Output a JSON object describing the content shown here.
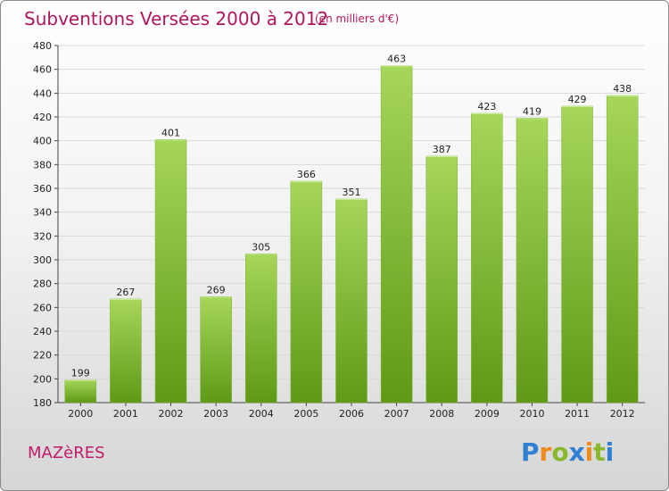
{
  "title": "Subventions Versées 2000 à 2012",
  "subtitle": "(en milliers d'€)",
  "commune": "MAZèRES",
  "logo": {
    "text": "Proxiti",
    "letters": [
      {
        "ch": "P",
        "color": "#2f7fd3"
      },
      {
        "ch": "r",
        "color": "#f08a1c"
      },
      {
        "ch": "o",
        "color": "#8ab82c"
      },
      {
        "ch": "x",
        "color": "#2f7fd3"
      },
      {
        "ch": "i",
        "color": "#f08a1c"
      },
      {
        "ch": "t",
        "color": "#8ab82c"
      },
      {
        "ch": "i",
        "color": "#2f7fd3"
      }
    ]
  },
  "colors": {
    "title": "#b0155f",
    "bar_light": "#a6d65a",
    "bar_dark": "#5e9a16",
    "grid": "#d9d9d9"
  },
  "chart_data": {
    "type": "bar",
    "categories": [
      "2000",
      "2001",
      "2002",
      "2003",
      "2004",
      "2005",
      "2006",
      "2007",
      "2008",
      "2009",
      "2010",
      "2011",
      "2012"
    ],
    "values": [
      199,
      267,
      401,
      269,
      305,
      366,
      351,
      463,
      387,
      423,
      419,
      429,
      438
    ],
    "ylim": [
      180,
      480
    ],
    "yticks": [
      180,
      200,
      220,
      240,
      260,
      280,
      300,
      320,
      340,
      360,
      380,
      400,
      420,
      440,
      460,
      480
    ],
    "grid": true,
    "data_labels": true
  }
}
